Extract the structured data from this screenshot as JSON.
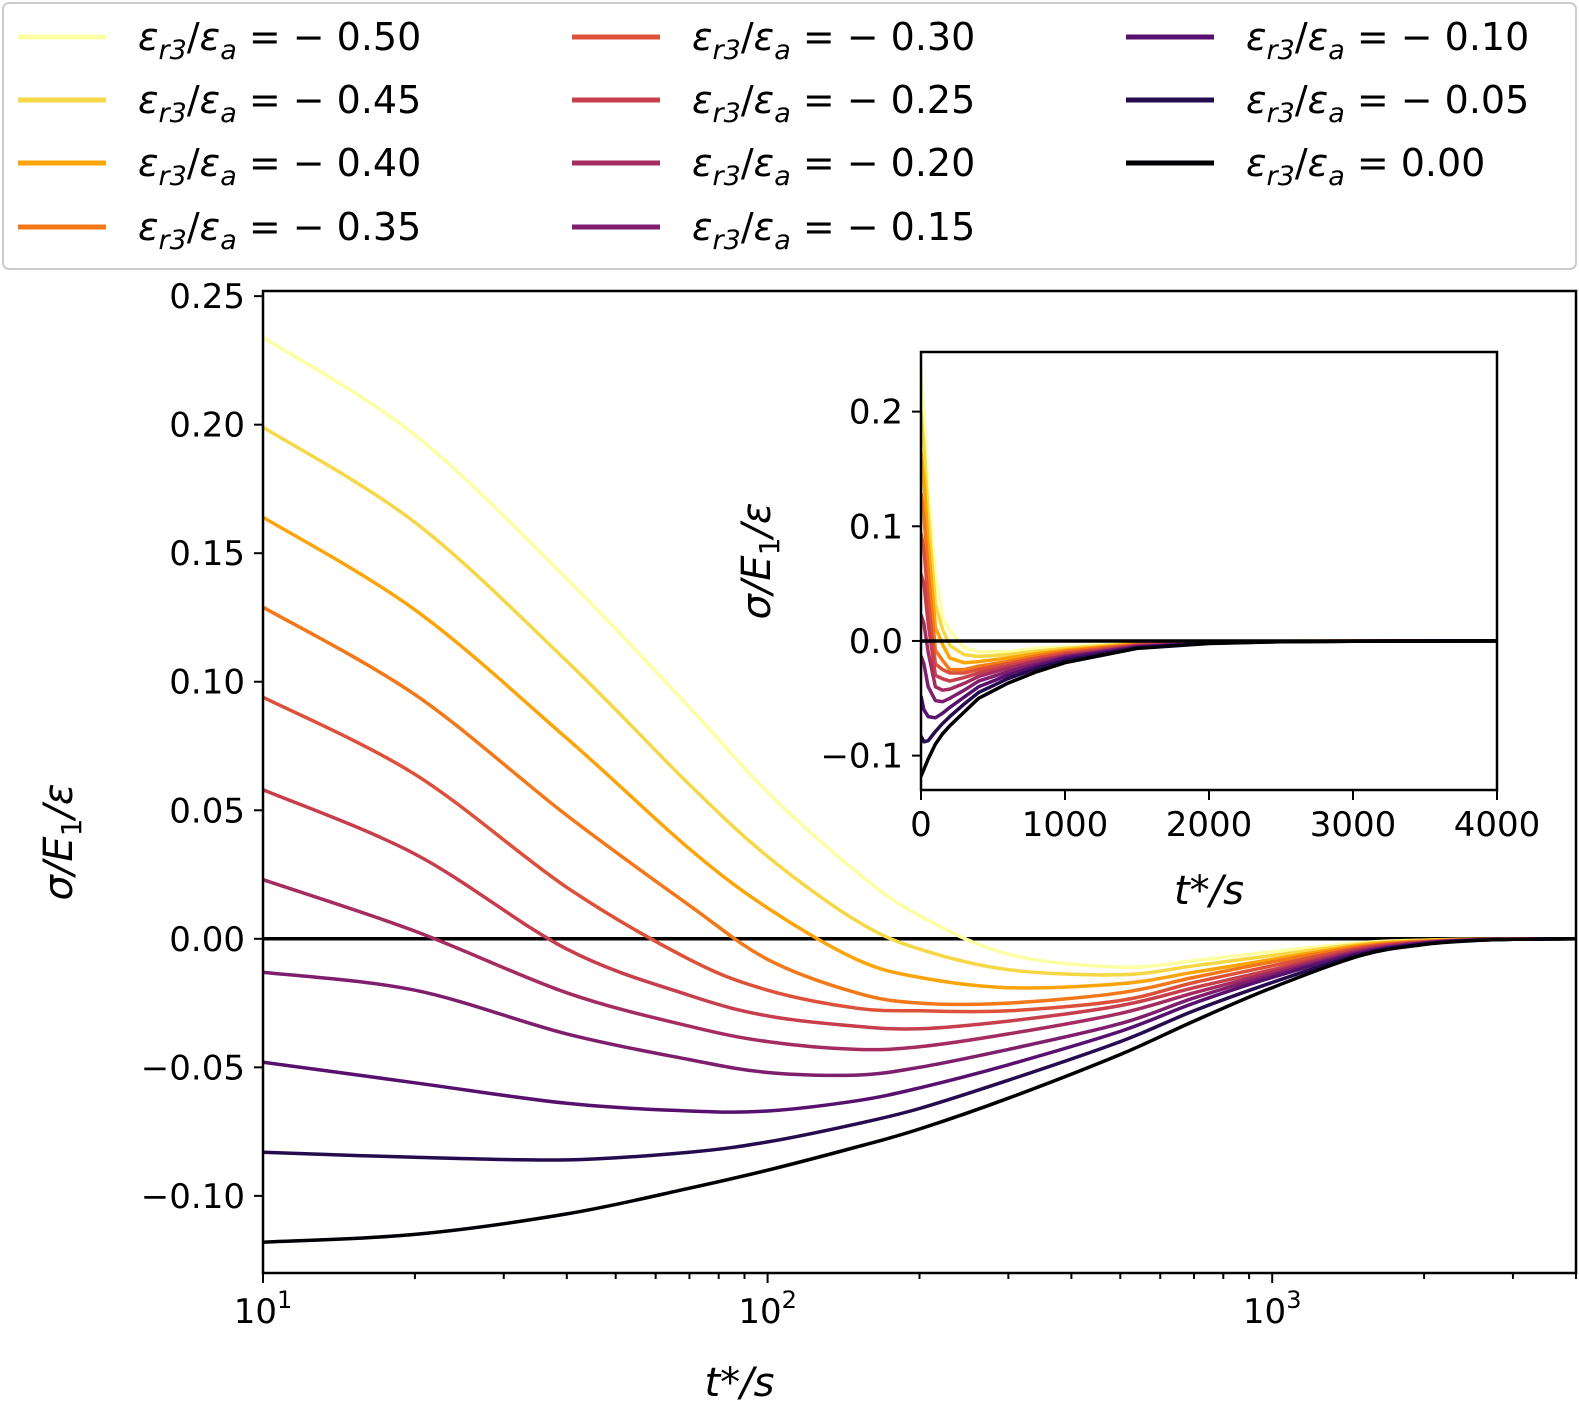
{
  "chart_data": [
    {
      "id": "main",
      "type": "line",
      "xscale": "log",
      "xlabel": "t*/s",
      "ylabel": "σ/E_1/ε",
      "xlim": [
        10,
        4000
      ],
      "ylim": [
        -0.13,
        0.252
      ],
      "xticks": [
        {
          "value": 10,
          "base": "10",
          "exp": "1"
        },
        {
          "value": 100,
          "base": "10",
          "exp": "2"
        },
        {
          "value": 1000,
          "base": "10",
          "exp": "3"
        }
      ],
      "yticks": [
        {
          "value": 0.25,
          "label": "0.25"
        },
        {
          "value": 0.2,
          "label": "0.20"
        },
        {
          "value": 0.15,
          "label": "0.15"
        },
        {
          "value": 0.1,
          "label": "0.10"
        },
        {
          "value": 0.05,
          "label": "0.05"
        },
        {
          "value": 0.0,
          "label": "0.00"
        },
        {
          "value": -0.05,
          "label": "−0.05"
        },
        {
          "value": -0.1,
          "label": "−0.10"
        }
      ],
      "x": [
        10,
        20,
        40,
        70,
        100,
        150,
        200,
        300,
        500,
        700,
        1000,
        1500,
        2000,
        2500,
        3000,
        4000
      ]
    },
    {
      "id": "inset",
      "type": "line",
      "xscale": "linear",
      "xlabel": "t*/s",
      "ylabel": "σ/E_1/ε",
      "xlim": [
        0,
        4000
      ],
      "ylim": [
        -0.13,
        0.252
      ],
      "xticks": [
        {
          "value": 0,
          "label": "0"
        },
        {
          "value": 1000,
          "label": "1000"
        },
        {
          "value": 2000,
          "label": "2000"
        },
        {
          "value": 3000,
          "label": "3000"
        },
        {
          "value": 4000,
          "label": "4000"
        }
      ],
      "yticks": [
        {
          "value": 0.2,
          "label": "0.2"
        },
        {
          "value": 0.1,
          "label": "0.1"
        },
        {
          "value": 0.0,
          "label": "0.0"
        },
        {
          "value": -0.1,
          "label": "−0.1"
        }
      ],
      "x": [
        0,
        20,
        50,
        100,
        150,
        200,
        300,
        400,
        600,
        800,
        1000,
        1500,
        2000,
        2500,
        3000,
        4000
      ]
    }
  ],
  "legend": {
    "placement": "top",
    "symbol": "ε",
    "sub_num": "r3",
    "sub_den": "a"
  },
  "series": [
    {
      "name": "ε_r3/ε_a = −0.50",
      "value_label": "− 0.50",
      "color": "#fcffa4",
      "main": [
        0.234,
        0.196,
        0.14,
        0.09,
        0.057,
        0.026,
        0.009,
        -0.006,
        -0.011,
        -0.0085,
        -0.005,
        -0.0015,
        -0.0005,
        -0.0002,
        -0.0001,
        0
      ],
      "inset": [
        0.234,
        0.2,
        0.135,
        0.057,
        0.02,
        0.009,
        -0.006,
        -0.0095,
        -0.0095,
        -0.0065,
        -0.005,
        -0.0015,
        -0.0005,
        -0.0002,
        -0.0001,
        0
      ]
    },
    {
      "name": "ε_r3/ε_a = −0.45",
      "value_label": "− 0.45",
      "color": "#f6d746",
      "main": [
        0.199,
        0.162,
        0.108,
        0.06,
        0.032,
        0.007,
        -0.004,
        -0.012,
        -0.014,
        -0.0105,
        -0.0065,
        -0.002,
        -0.0006,
        -0.0002,
        -0.0001,
        0
      ],
      "inset": [
        0.199,
        0.17,
        0.11,
        0.032,
        0.01,
        -0.004,
        -0.012,
        -0.0135,
        -0.012,
        -0.009,
        -0.0065,
        -0.002,
        -0.0006,
        -0.0002,
        -0.0001,
        0
      ]
    },
    {
      "name": "ε_r3/ε_a = −0.40",
      "value_label": "− 0.40",
      "color": "#fca50a",
      "main": [
        0.164,
        0.128,
        0.078,
        0.035,
        0.012,
        -0.008,
        -0.015,
        -0.019,
        -0.0175,
        -0.013,
        -0.008,
        -0.0025,
        -0.0008,
        -0.0003,
        -0.0001,
        0
      ],
      "inset": [
        0.164,
        0.14,
        0.085,
        0.012,
        -0.003,
        -0.015,
        -0.019,
        -0.018,
        -0.015,
        -0.011,
        -0.008,
        -0.0025,
        -0.0008,
        -0.0003,
        -0.0001,
        0
      ]
    },
    {
      "name": "ε_r3/ε_a = −0.35",
      "value_label": "− 0.35",
      "color": "#f37819",
      "main": [
        0.129,
        0.095,
        0.048,
        0.013,
        -0.008,
        -0.021,
        -0.025,
        -0.025,
        -0.021,
        -0.015,
        -0.009,
        -0.003,
        -0.001,
        -0.0003,
        -0.0001,
        0
      ],
      "inset": [
        0.129,
        0.11,
        0.06,
        -0.008,
        -0.017,
        -0.025,
        -0.025,
        -0.022,
        -0.018,
        -0.013,
        -0.009,
        -0.003,
        -0.001,
        -0.0003,
        -0.0001,
        0
      ]
    },
    {
      "name": "ε_r3/ε_a = −0.30",
      "value_label": "− 0.30",
      "color": "#dd513a",
      "main": [
        0.094,
        0.064,
        0.02,
        -0.008,
        -0.02,
        -0.027,
        -0.028,
        -0.028,
        -0.024,
        -0.017,
        -0.0105,
        -0.0035,
        -0.0012,
        -0.0004,
        -0.0001,
        0
      ],
      "inset": [
        0.094,
        0.08,
        0.035,
        -0.02,
        -0.025,
        -0.028,
        -0.028,
        -0.025,
        -0.02,
        -0.015,
        -0.0105,
        -0.0035,
        -0.0012,
        -0.0004,
        -0.0001,
        0
      ]
    },
    {
      "name": "ε_r3/ε_a = −0.25",
      "value_label": "− 0.25",
      "color": "#c73e4c",
      "main": [
        0.058,
        0.033,
        -0.004,
        -0.022,
        -0.03,
        -0.034,
        -0.035,
        -0.032,
        -0.026,
        -0.019,
        -0.012,
        -0.004,
        -0.0013,
        -0.0004,
        -0.0001,
        0
      ],
      "inset": [
        0.058,
        0.05,
        0.015,
        -0.03,
        -0.033,
        -0.035,
        -0.032,
        -0.028,
        -0.022,
        -0.017,
        -0.012,
        -0.004,
        -0.0013,
        -0.0004,
        -0.0001,
        0
      ]
    },
    {
      "name": "ε_r3/ε_a = −0.20",
      "value_label": "− 0.20",
      "color": "#a52c60",
      "main": [
        0.023,
        0.003,
        -0.021,
        -0.034,
        -0.04,
        -0.043,
        -0.042,
        -0.037,
        -0.029,
        -0.021,
        -0.013,
        -0.0045,
        -0.0015,
        -0.0005,
        -0.0001,
        0
      ],
      "inset": [
        0.023,
        0.015,
        -0.01,
        -0.04,
        -0.043,
        -0.042,
        -0.037,
        -0.031,
        -0.024,
        -0.018,
        -0.013,
        -0.0045,
        -0.0015,
        -0.0005,
        -0.0001,
        0
      ]
    },
    {
      "name": "ε_r3/ε_a = −0.15",
      "value_label": "− 0.15",
      "color": "#7e1e6d",
      "main": [
        -0.013,
        -0.02,
        -0.037,
        -0.047,
        -0.052,
        -0.053,
        -0.05,
        -0.043,
        -0.033,
        -0.023,
        -0.014,
        -0.005,
        -0.0016,
        -0.0005,
        -0.0002,
        0
      ],
      "inset": [
        -0.013,
        -0.02,
        -0.04,
        -0.052,
        -0.053,
        -0.05,
        -0.043,
        -0.035,
        -0.027,
        -0.02,
        -0.014,
        -0.005,
        -0.0016,
        -0.0005,
        -0.0002,
        0
      ]
    },
    {
      "name": "ε_r3/ε_a = −0.10",
      "value_label": "− 0.10",
      "color": "#57106e",
      "main": [
        -0.048,
        -0.056,
        -0.064,
        -0.067,
        -0.067,
        -0.063,
        -0.058,
        -0.049,
        -0.036,
        -0.025,
        -0.015,
        -0.0055,
        -0.0018,
        -0.0006,
        -0.0002,
        0
      ],
      "inset": [
        -0.048,
        -0.06,
        -0.066,
        -0.067,
        -0.063,
        -0.058,
        -0.049,
        -0.04,
        -0.03,
        -0.022,
        -0.015,
        -0.0055,
        -0.0018,
        -0.0006,
        -0.0002,
        0
      ]
    },
    {
      "name": "ε_r3/ε_a = −0.05",
      "value_label": "− 0.05",
      "color": "#240c4f",
      "main": [
        -0.083,
        -0.085,
        -0.086,
        -0.083,
        -0.079,
        -0.072,
        -0.066,
        -0.055,
        -0.04,
        -0.028,
        -0.017,
        -0.006,
        -0.002,
        -0.0006,
        -0.0002,
        0
      ],
      "inset": [
        -0.083,
        -0.088,
        -0.087,
        -0.079,
        -0.072,
        -0.066,
        -0.055,
        -0.045,
        -0.033,
        -0.024,
        -0.017,
        -0.006,
        -0.002,
        -0.0006,
        -0.0002,
        0
      ]
    },
    {
      "name": "ε_r3/ε_a = 0.00",
      "value_label": "0.00",
      "color": "#000004",
      "main": [
        -0.118,
        -0.115,
        -0.107,
        -0.097,
        -0.09,
        -0.081,
        -0.074,
        -0.062,
        -0.045,
        -0.032,
        -0.019,
        -0.0065,
        -0.0022,
        -0.0007,
        -0.0002,
        0
      ],
      "inset": [
        -0.118,
        -0.112,
        -0.103,
        -0.09,
        -0.081,
        -0.074,
        -0.062,
        -0.05,
        -0.037,
        -0.027,
        -0.019,
        -0.0065,
        -0.0022,
        -0.0007,
        -0.0002,
        0
      ]
    }
  ],
  "zero_line_color": "#000000"
}
